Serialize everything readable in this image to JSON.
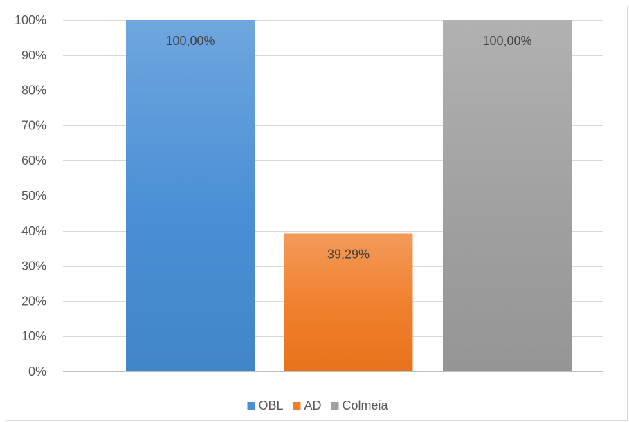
{
  "chart_data": {
    "type": "bar",
    "categories": [
      ""
    ],
    "series": [
      {
        "name": "OBL",
        "values": [
          100.0
        ],
        "label": "100,00%",
        "color": "#4a8fd6",
        "color_light": "#6fa6de",
        "color_dark": "#4286c9"
      },
      {
        "name": "AD",
        "values": [
          39.29
        ],
        "label": "39,29%",
        "color": "#f07f2b",
        "color_light": "#f39a5a",
        "color_dark": "#e8721c"
      },
      {
        "name": "Colmeia",
        "values": [
          100.0
        ],
        "label": "100,00%",
        "color": "#a0a0a0",
        "color_light": "#b1b1b1",
        "color_dark": "#959595"
      }
    ],
    "ylim": [
      0,
      100
    ],
    "y_ticks": [
      0,
      10,
      20,
      30,
      40,
      50,
      60,
      70,
      80,
      90,
      100
    ],
    "y_tick_labels": [
      "0%",
      "10%",
      "20%",
      "30%",
      "40%",
      "50%",
      "60%",
      "70%",
      "80%",
      "90%",
      "100%"
    ],
    "grid": true,
    "legend": "bottom",
    "title": "",
    "xlabel": "",
    "ylabel": ""
  }
}
